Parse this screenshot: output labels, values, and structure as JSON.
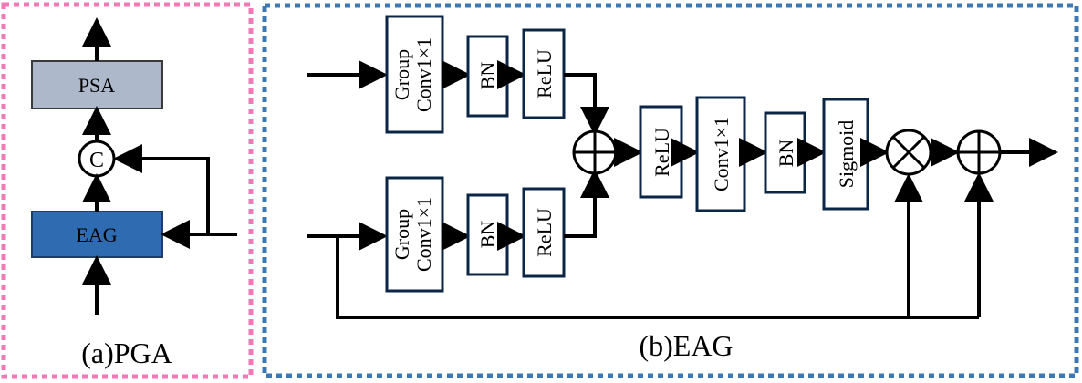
{
  "colors": {
    "pga_border": "#f07ab6",
    "eag_border": "#3c78b4",
    "psa_fill": "#adb9ca",
    "eag_fill": "#2e6bb0",
    "block_stroke": "#0b2545"
  },
  "pga": {
    "caption": "(a)PGA",
    "psa_label": "PSA",
    "concat_label": "C",
    "eag_label": "EAG"
  },
  "eag": {
    "caption": "(b)EAG",
    "top_group": "Group",
    "top_conv": "Conv1×1",
    "top_bn": "BN",
    "top_relu": "ReLU",
    "bot_group": "Group",
    "bot_conv": "Conv1×1",
    "bot_bn": "BN",
    "bot_relu": "ReLU",
    "mid_relu": "ReLU",
    "mid_conv": "Conv1×1",
    "mid_bn": "BN",
    "mid_sigmoid": "Sigmoid"
  }
}
